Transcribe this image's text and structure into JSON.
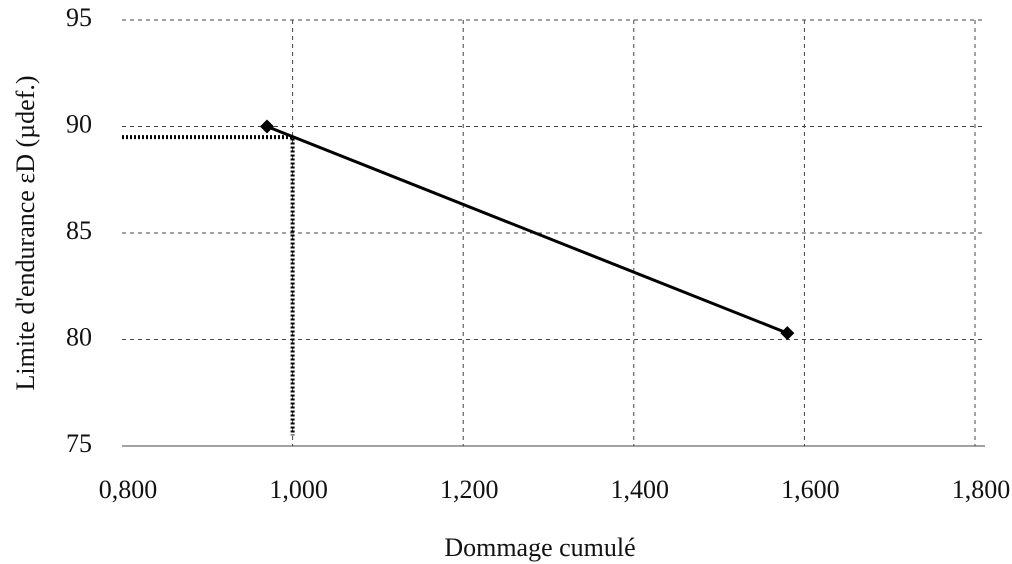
{
  "chart_data": {
    "type": "line",
    "x_label": "Dommage cumulé",
    "y_label": "Limite d'endurance εD (µdef.)",
    "series": [
      {
        "color": "#000000",
        "style": "solid",
        "marker": "diamond",
        "x": [
          0.97,
          1.58
        ],
        "values": [
          90.0,
          80.3
        ]
      },
      {
        "color": "#000000",
        "style": "dotted",
        "x": [
          0.8,
          1.0,
          1.0
        ],
        "values": [
          89.5,
          89.5,
          75.5
        ]
      }
    ],
    "xlim": [
      0.8,
      1.8
    ],
    "xticks": [
      {
        "value": 0.8,
        "label": "0,800"
      },
      {
        "value": 1.0,
        "label": "1,000"
      },
      {
        "value": 1.2,
        "label": "1,200"
      },
      {
        "value": 1.4,
        "label": "1,400"
      },
      {
        "value": 1.6,
        "label": "1,600"
      },
      {
        "value": 1.8,
        "label": "1,800"
      }
    ],
    "ylim": [
      75,
      95
    ],
    "yticks": [
      75,
      80,
      85,
      90,
      95
    ],
    "grid": true
  }
}
